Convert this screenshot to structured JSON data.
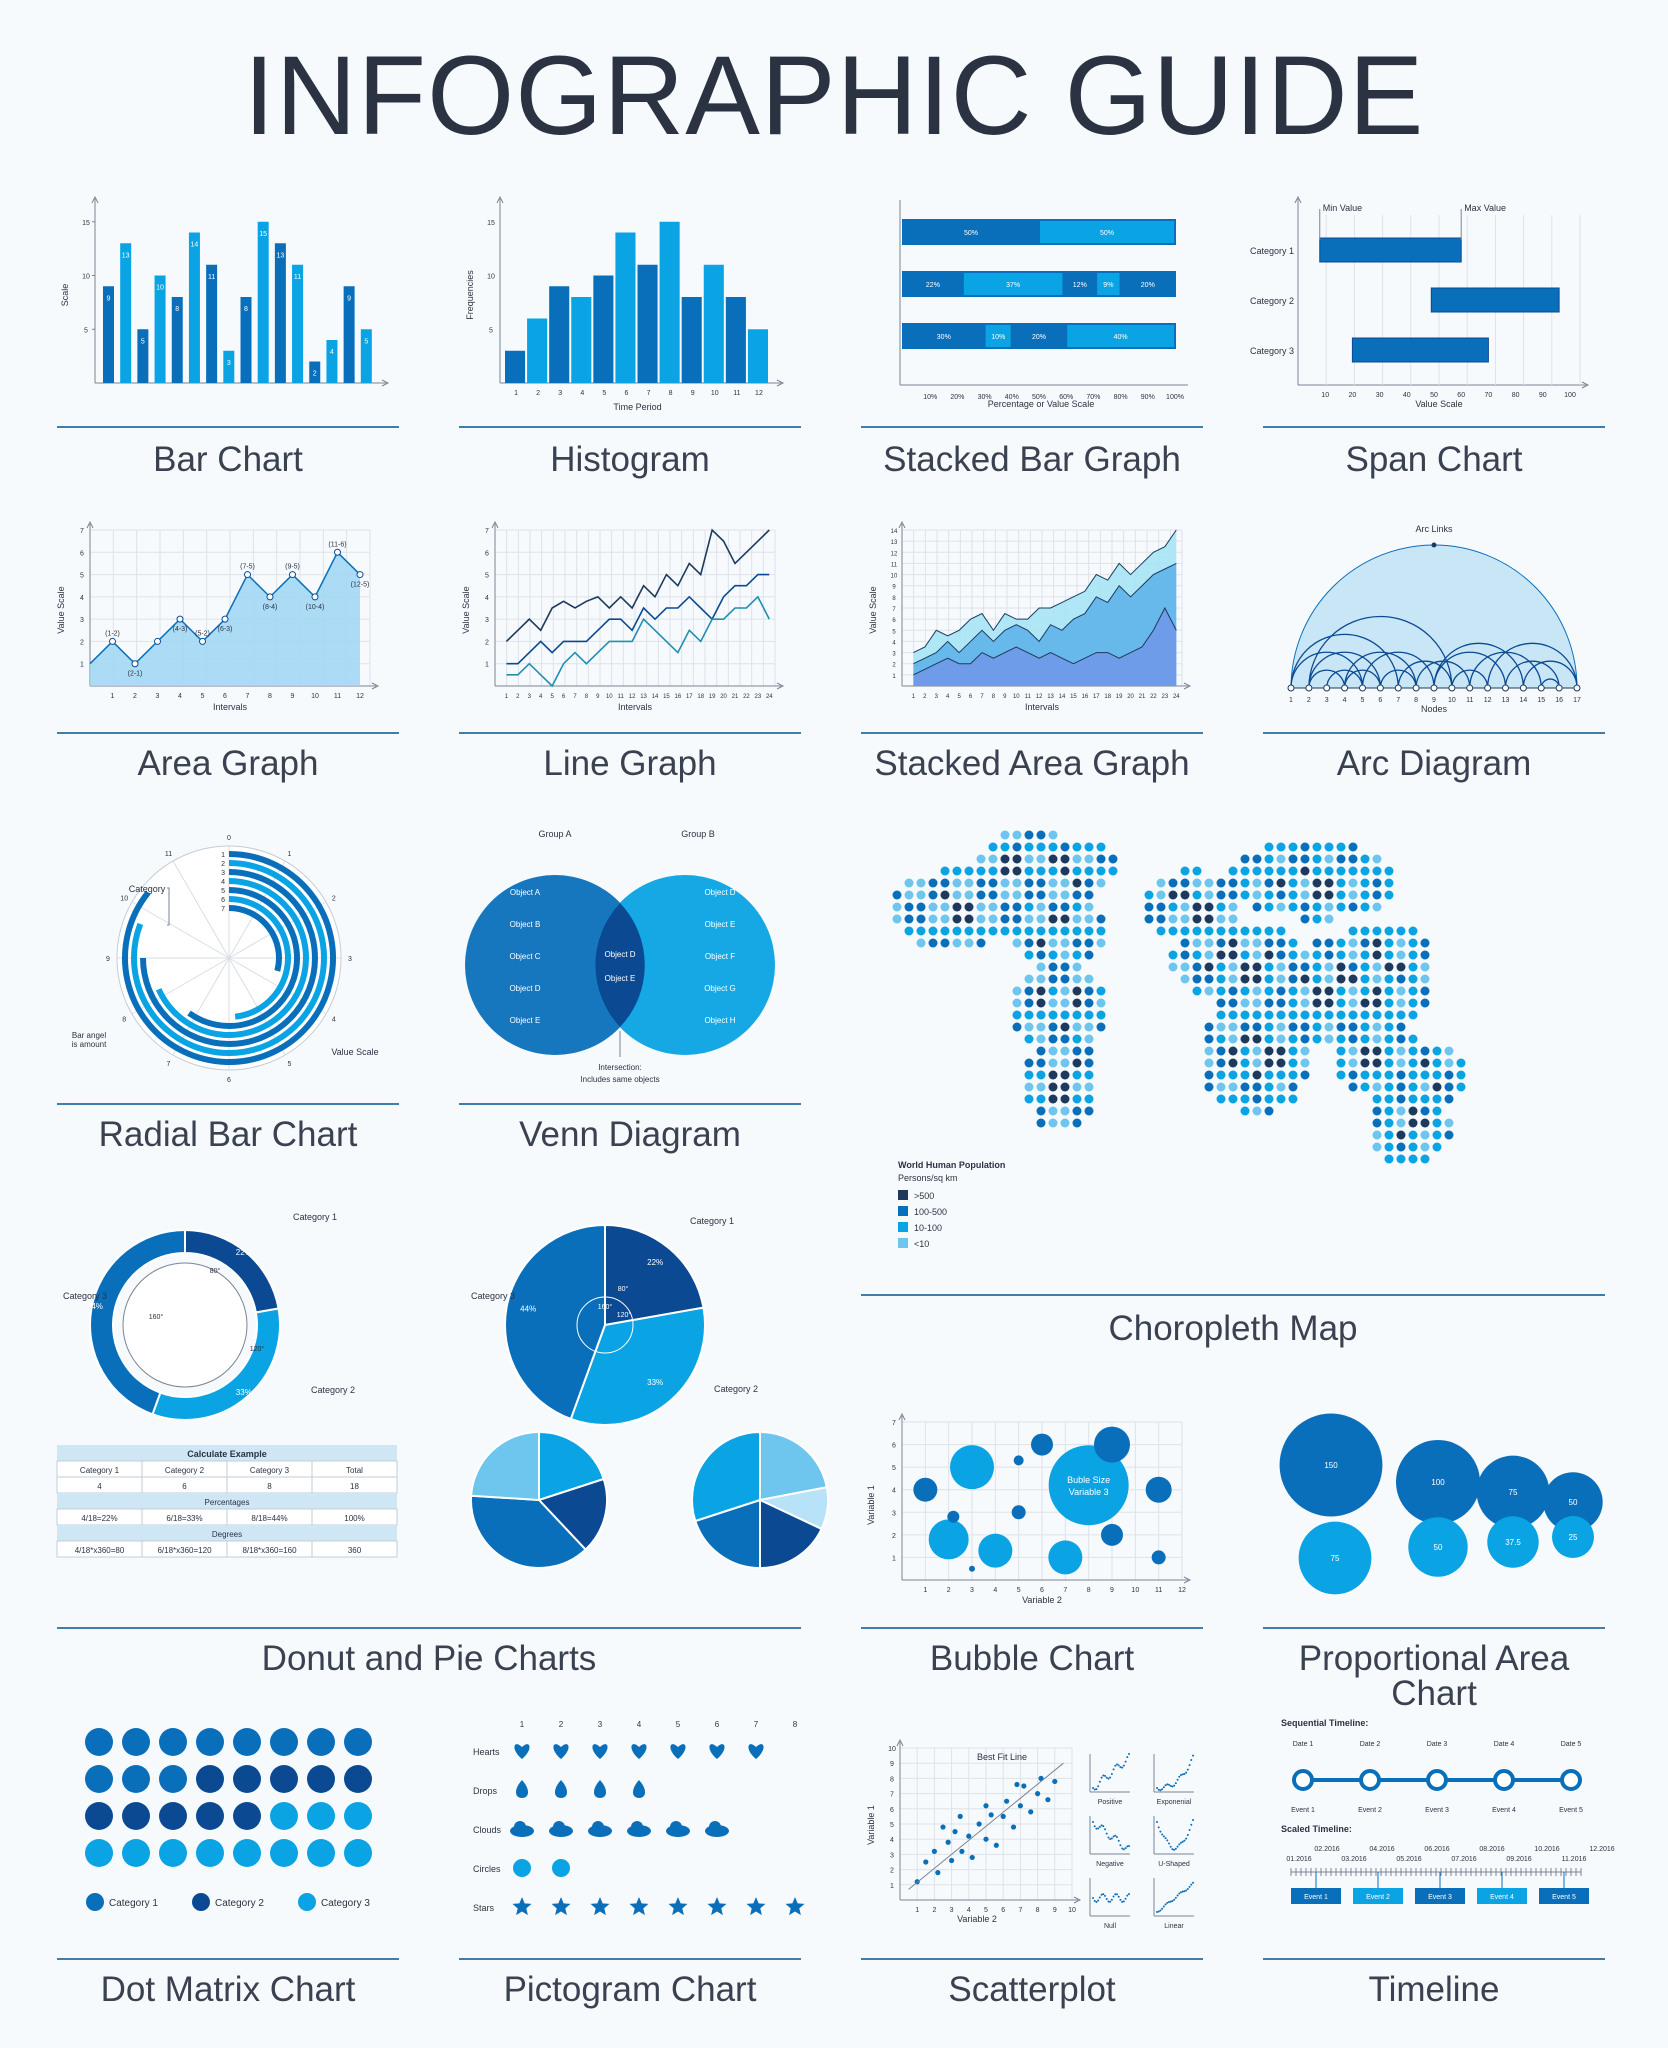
{
  "page": {
    "title": "INFOGRAPHIC GUIDE"
  },
  "colors": {
    "dark": "#0b4a93",
    "mid": "#0a6fba",
    "light": "#0aa3e3",
    "pale": "#6ec5ee",
    "navy": "#1d3a5e",
    "axis": "#7a8494",
    "text": "#2b3242",
    "divider": "#3f7daa"
  },
  "captions": {
    "bar": "Bar Chart",
    "histogram": "Histogram",
    "stacked_bar": "Stacked Bar Graph",
    "span": "Span Chart",
    "area": "Area Graph",
    "line": "Line Graph",
    "stacked_area": "Stacked Area Graph",
    "arc": "Arc Diagram",
    "radial": "Radial Bar Chart",
    "venn": "Venn Diagram",
    "choropleth": "Choropleth Map",
    "donut_pie": "Donut and Pie Charts",
    "bubble": "Bubble Chart",
    "proportional": "Proportional Area Chart",
    "dot_matrix": "Dot Matrix Chart",
    "pictogram": "Pictogram Chart",
    "scatter": "Scatterplot",
    "timeline": "Timeline"
  },
  "chart_data": [
    {
      "id": "bar",
      "type": "bar",
      "ylabel": "Scale",
      "ylim": [
        0,
        16
      ],
      "yticks": [
        5,
        10,
        15
      ],
      "values": [
        9,
        13,
        5,
        10,
        8,
        14,
        11,
        3,
        8,
        15,
        13,
        11,
        2,
        4,
        9,
        5
      ]
    },
    {
      "id": "histogram",
      "type": "bar",
      "xlabel": "Time Period",
      "ylabel": "Frequencies",
      "ylim": [
        0,
        16
      ],
      "yticks": [
        5,
        10,
        15
      ],
      "categories": [
        "1",
        "2",
        "3",
        "4",
        "5",
        "6",
        "7",
        "8",
        "9",
        "10",
        "11",
        "12"
      ],
      "values": [
        3,
        6,
        9,
        8,
        10,
        14,
        11,
        15,
        8,
        11,
        8,
        5
      ]
    },
    {
      "id": "stacked_bar",
      "type": "bar",
      "xlabel": "Percentage or Value Scale",
      "xticks": [
        "10%",
        "20%",
        "30%",
        "40%",
        "50%",
        "60%",
        "70%",
        "80%",
        "90%",
        "100%"
      ],
      "rows": [
        [
          50,
          50
        ],
        [
          22,
          37,
          12,
          9,
          20
        ],
        [
          30,
          10,
          20,
          40
        ]
      ],
      "labels": [
        [
          "50%",
          "50%"
        ],
        [
          "22%",
          "37%",
          "12%",
          "9%",
          "20%"
        ],
        [
          "30%",
          "10%",
          "20%",
          "40%"
        ]
      ]
    },
    {
      "id": "span",
      "type": "bar",
      "xlabel": "Value Scale",
      "xlim": [
        0,
        100
      ],
      "xticks": [
        "10",
        "20",
        "30",
        "40",
        "50",
        "60",
        "70",
        "80",
        "90",
        "100"
      ],
      "annotations": [
        "Min Value",
        "Max Value"
      ],
      "spans": [
        {
          "name": "Category 1",
          "min": 8,
          "max": 60
        },
        {
          "name": "Category 2",
          "min": 49,
          "max": 96
        },
        {
          "name": "Category 3",
          "min": 20,
          "max": 70
        }
      ]
    },
    {
      "id": "area",
      "type": "area",
      "xlabel": "Intervals",
      "ylabel": "Value Scale",
      "ylim": [
        0,
        7
      ],
      "x": [
        0,
        1,
        2,
        3,
        4,
        5,
        6,
        7,
        8,
        9,
        10,
        11,
        12
      ],
      "y": [
        1,
        2,
        1,
        2,
        3,
        2,
        3,
        5,
        4,
        5,
        4,
        6,
        5
      ],
      "point_labels": [
        "",
        "(1-2)",
        "(2-1)",
        "",
        "(4-3)",
        "(5-2)",
        "(6-3)",
        "(7-5)",
        "(8-4)",
        "(9-5)",
        "(10-4)",
        "(11-6)",
        "(12-5)"
      ]
    },
    {
      "id": "line",
      "type": "line",
      "xlabel": "Intervals",
      "ylabel": "Value Scale",
      "ylim": [
        0,
        7
      ],
      "x": [
        1,
        2,
        3,
        4,
        5,
        6,
        7,
        8,
        9,
        10,
        11,
        12,
        13,
        14,
        15,
        16,
        17,
        18,
        19,
        20,
        21,
        22,
        23,
        24
      ],
      "series": [
        {
          "values": [
            2,
            2.5,
            3,
            2.5,
            3.5,
            3.8,
            3.5,
            3.8,
            4,
            3.5,
            4,
            3.5,
            4.5,
            4,
            5,
            4.5,
            5.5,
            5,
            7,
            6.5,
            5.5,
            6,
            6.5,
            7
          ]
        },
        {
          "values": [
            1,
            1,
            1.5,
            2,
            1.5,
            2,
            2,
            2,
            2.5,
            3,
            3,
            2.5,
            3.5,
            3,
            3.5,
            3.5,
            4,
            3.5,
            3,
            4,
            4.5,
            4.5,
            5,
            5
          ]
        },
        {
          "values": [
            0.5,
            0.5,
            1,
            0.5,
            0,
            1,
            1.5,
            1,
            1.5,
            2,
            2,
            2,
            3,
            2.5,
            2,
            1.5,
            2.5,
            2,
            3,
            3,
            3.5,
            3.5,
            4,
            3
          ]
        }
      ]
    },
    {
      "id": "stacked_area",
      "type": "area",
      "xlabel": "Intervals",
      "ylabel": "Value Scale",
      "ylim": [
        0,
        14
      ],
      "x": [
        1,
        2,
        3,
        4,
        5,
        6,
        7,
        8,
        9,
        10,
        11,
        12,
        13,
        14,
        15,
        16,
        17,
        18,
        19,
        20,
        21,
        22,
        23,
        24
      ],
      "series": [
        {
          "values": [
            1,
            1.5,
            2,
            2.5,
            2,
            2,
            3,
            2.5,
            3,
            3.5,
            3,
            2.5,
            3,
            2.5,
            2,
            2.5,
            3,
            3,
            2.5,
            3,
            3.5,
            5,
            7,
            5
          ]
        },
        {
          "values": [
            2,
            2.5,
            3,
            4,
            3,
            4,
            5,
            4,
            5,
            5.5,
            5,
            4,
            5.5,
            5,
            6,
            6.5,
            8,
            7.5,
            9,
            8,
            9,
            10,
            10.5,
            11
          ]
        },
        {
          "values": [
            3,
            3.5,
            5,
            4.5,
            5,
            6,
            6.5,
            5,
            6.5,
            6,
            6,
            7,
            7,
            7.5,
            8,
            8.5,
            10,
            9.5,
            11,
            10,
            11,
            12,
            12.5,
            14
          ]
        }
      ]
    },
    {
      "id": "arc",
      "type": "arc",
      "xlabel": "Nodes",
      "annotation": "Arc Links",
      "nodes": [
        "1",
        "2",
        "3",
        "4",
        "5",
        "6",
        "7",
        "8",
        "9",
        "10",
        "11",
        "12",
        "13",
        "14",
        "15",
        "16",
        "17"
      ]
    },
    {
      "id": "radial",
      "type": "bar",
      "annotations": [
        "Category",
        "Bar angel\nis amount",
        "Value Scale"
      ],
      "ticks": [
        "0",
        "1",
        "2",
        "3",
        "4",
        "5",
        "6",
        "7",
        "8",
        "9",
        "10",
        "11"
      ],
      "values": [
        10.3,
        9.7,
        9,
        8.2,
        7.2,
        5.8,
        3.5
      ],
      "categories": [
        "1",
        "2",
        "3",
        "4",
        "5",
        "6",
        "7"
      ]
    },
    {
      "id": "venn",
      "type": "other",
      "groups": [
        "Group A",
        "Group B"
      ],
      "a_only": [
        "Object A",
        "Object B",
        "Object C",
        "Object D",
        "Object E"
      ],
      "both": [
        "Object D",
        "Object E"
      ],
      "b_only": [
        "Object D",
        "Object E",
        "Object F",
        "Object G",
        "Object H"
      ],
      "annotation": "Intersection:\nIncludes same objects"
    },
    {
      "id": "donut",
      "type": "pie",
      "slices": [
        {
          "name": "Category 1",
          "pct": "22%",
          "value": 22,
          "angle": "80°"
        },
        {
          "name": "Category 2",
          "pct": "33%",
          "value": 33,
          "angle": "120°"
        },
        {
          "name": "Category 3",
          "pct": "44%",
          "value": 44,
          "angle": "160°"
        }
      ]
    },
    {
      "id": "pie",
      "type": "pie",
      "slices": [
        {
          "name": "Category 1",
          "pct": "22%",
          "value": 22,
          "angle": "80°"
        },
        {
          "name": "Category 2",
          "pct": "33%",
          "value": 33,
          "angle": "120°"
        },
        {
          "name": "Category 3",
          "pct": "44%",
          "value": 44,
          "angle": "160°"
        }
      ]
    },
    {
      "id": "calc_table",
      "type": "table",
      "title": "Calculate Example",
      "headers": [
        "Category 1",
        "Category 2",
        "Category 3",
        "Total"
      ],
      "values": [
        "4",
        "6",
        "8",
        "18"
      ],
      "pct_title": "Percentages",
      "pcts": [
        "4/18=22%",
        "6/18=33%",
        "8/18=44%",
        "100%"
      ],
      "deg_title": "Degrees",
      "degs": [
        "4/18*x360=80",
        "6/18*x360=120",
        "8/18*x360=160",
        "360"
      ]
    },
    {
      "id": "bubble",
      "type": "scatter",
      "xlabel": "Variable 2",
      "ylabel": "Variable 1",
      "xlim": [
        0,
        12
      ],
      "ylim": [
        0,
        7
      ],
      "annotation": "Buble Size\nVariable 3",
      "points": [
        {
          "x": 1,
          "y": 4,
          "s": 12
        },
        {
          "x": 2,
          "y": 1.8,
          "s": 20
        },
        {
          "x": 2.2,
          "y": 2.8,
          "s": 6
        },
        {
          "x": 3,
          "y": 5,
          "s": 22
        },
        {
          "x": 3,
          "y": 0.5,
          "s": 3
        },
        {
          "x": 4,
          "y": 1.3,
          "s": 17
        },
        {
          "x": 5,
          "y": 5.3,
          "s": 5
        },
        {
          "x": 5,
          "y": 3,
          "s": 7
        },
        {
          "x": 6,
          "y": 6,
          "s": 11
        },
        {
          "x": 7,
          "y": 1,
          "s": 17
        },
        {
          "x": 8,
          "y": 4.2,
          "s": 40
        },
        {
          "x": 9,
          "y": 6,
          "s": 18
        },
        {
          "x": 9,
          "y": 2,
          "s": 11
        },
        {
          "x": 11,
          "y": 4,
          "s": 13
        },
        {
          "x": 11,
          "y": 1,
          "s": 7
        }
      ]
    },
    {
      "id": "proportional",
      "type": "other",
      "values": [
        150,
        100,
        75,
        50,
        75,
        50,
        37.5,
        25
      ],
      "labels": [
        "150",
        "100",
        "75",
        "50",
        "75",
        "50",
        "37.5",
        "25"
      ]
    },
    {
      "id": "dot_matrix",
      "type": "other",
      "legend": [
        "Category 1",
        "Category 2",
        "Category 3"
      ],
      "counts": [
        11,
        10,
        11
      ]
    },
    {
      "id": "pictogram",
      "type": "other",
      "columns": [
        "1",
        "2",
        "3",
        "4",
        "5",
        "6",
        "7",
        "8"
      ],
      "rows": [
        {
          "name": "Hearts",
          "count": 7
        },
        {
          "name": "Drops",
          "count": 4
        },
        {
          "name": "Clouds",
          "count": 6
        },
        {
          "name": "Circles",
          "count": 2
        },
        {
          "name": "Stars",
          "count": 8
        }
      ]
    },
    {
      "id": "scatter",
      "type": "scatter",
      "xlabel": "Variable 2",
      "ylabel": "Variable 1",
      "xlim": [
        0,
        10
      ],
      "ylim": [
        0,
        10
      ],
      "annotation": "Best Fit Line",
      "mini_labels": [
        "Positive",
        "Exponenial",
        "Negative",
        "U-Shaped",
        "Null",
        "Linear"
      ]
    },
    {
      "id": "timeline",
      "type": "other",
      "seq_title": "Sequential Timeline:",
      "dates": [
        "Date 1",
        "Date 2",
        "Date 3",
        "Date 4",
        "Date 5"
      ],
      "events": [
        "Event 1",
        "Event 2",
        "Event 3",
        "Event 4",
        "Event 5"
      ],
      "scaled_title": "Scaled Timeline:",
      "scaled_top": [
        "02.2016",
        "04.2016",
        "06.2016",
        "08.2016",
        "10.2016",
        "12.2016"
      ],
      "scaled_bottom": [
        "01.2016",
        "03.2016",
        "05.2016",
        "07.2016",
        "09.2016",
        "11.2016"
      ]
    }
  ],
  "map": {
    "title": "World Human Population",
    "subtitle": "Persons/sq km",
    "legend": [
      ">500",
      "100-500",
      "10-100",
      "<10"
    ]
  }
}
